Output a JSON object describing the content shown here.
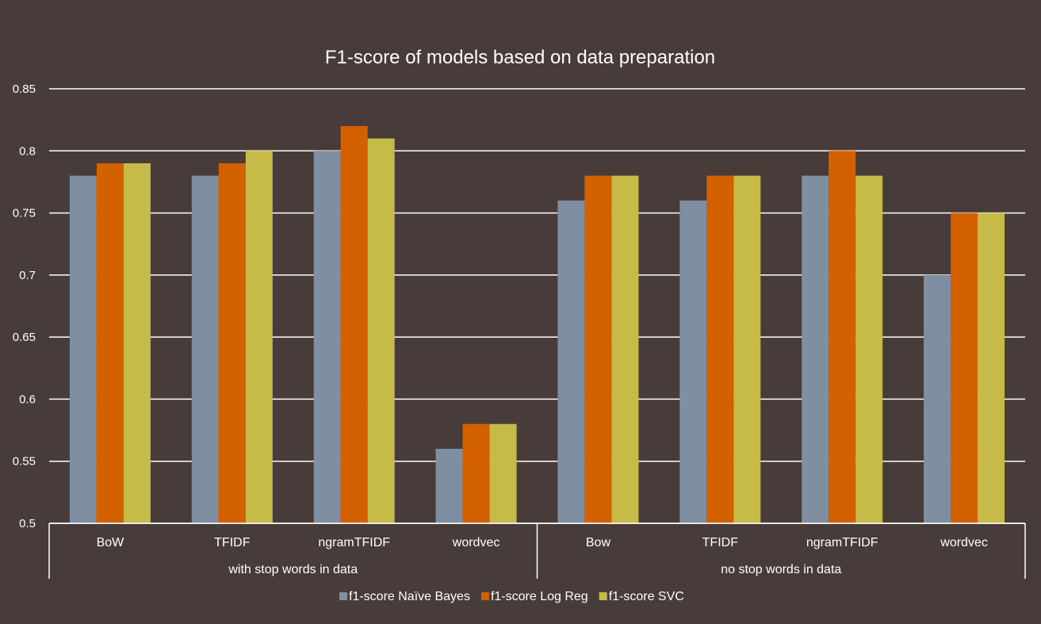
{
  "chart_data": {
    "type": "bar",
    "title": "F1-score of models based on data preparation",
    "xlabel": "",
    "ylabel": "",
    "ylim": [
      0.5,
      0.85
    ],
    "yticks": [
      "0.5",
      "0.55",
      "0.6",
      "0.65",
      "0.7",
      "0.75",
      "0.8",
      "0.85"
    ],
    "grid": true,
    "legend_position": "bottom",
    "groups": [
      {
        "label": "with stop words in data",
        "categories": [
          "BoW",
          "TFIDF",
          "ngramTFIDF",
          "wordvec"
        ]
      },
      {
        "label": "no stop words in data",
        "categories": [
          "Bow",
          "TFIDF",
          "ngramTFIDF",
          "wordvec"
        ]
      }
    ],
    "categories": [
      "BoW",
      "TFIDF",
      "ngramTFIDF",
      "wordvec",
      "Bow",
      "TFIDF",
      "ngramTFIDF",
      "wordvec"
    ],
    "series": [
      {
        "name": "f1-score Naïve Bayes",
        "color": "#7f8ea0",
        "values": [
          0.78,
          0.78,
          0.8,
          0.56,
          0.76,
          0.76,
          0.78,
          0.7
        ]
      },
      {
        "name": "f1-score Log Reg",
        "color": "#d46100",
        "values": [
          0.79,
          0.79,
          0.82,
          0.58,
          0.78,
          0.78,
          0.8,
          0.75
        ]
      },
      {
        "name": "f1-score SVC",
        "color": "#c6bb48",
        "values": [
          0.79,
          0.8,
          0.81,
          0.58,
          0.78,
          0.78,
          0.78,
          0.75
        ]
      }
    ]
  }
}
